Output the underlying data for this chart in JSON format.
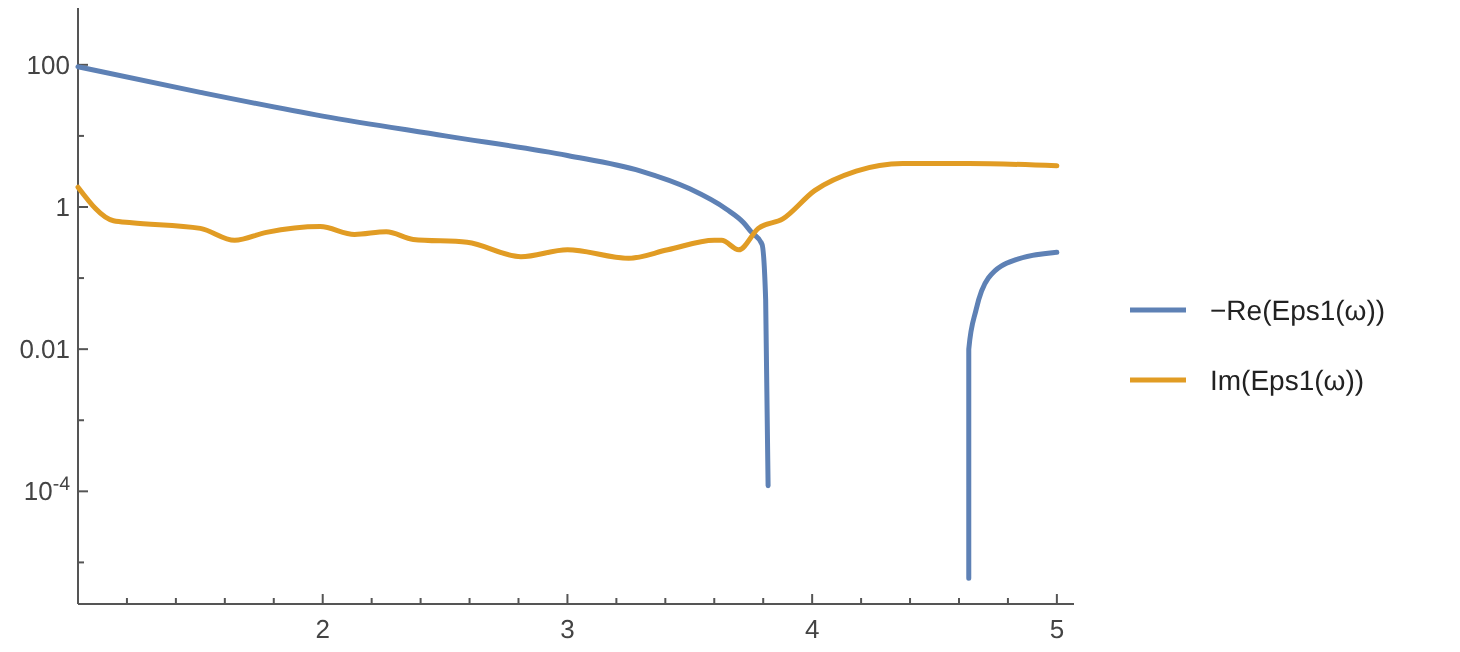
{
  "chart_data": {
    "type": "line",
    "log": "y",
    "legend": "right",
    "grid": false,
    "marker": "none",
    "line_style": "solid",
    "xlim": [
      1,
      5.07
    ],
    "ylim": [
      2.6e-06,
      630
    ],
    "xticks": [
      {
        "value": 1.2,
        "label": null
      },
      {
        "value": 1.4,
        "label": null
      },
      {
        "value": 1.6,
        "label": null
      },
      {
        "value": 1.8,
        "label": null
      },
      2,
      {
        "value": 2.2,
        "label": null
      },
      {
        "value": 2.4,
        "label": null
      },
      {
        "value": 2.6,
        "label": null
      },
      {
        "value": 2.8,
        "label": null
      },
      3,
      {
        "value": 3.2,
        "label": null
      },
      {
        "value": 3.4,
        "label": null
      },
      {
        "value": 3.6,
        "label": null
      },
      {
        "value": 3.8,
        "label": null
      },
      4,
      {
        "value": 4.2,
        "label": null
      },
      {
        "value": 4.4,
        "label": null
      },
      {
        "value": 4.6,
        "label": null
      },
      {
        "value": 4.8,
        "label": null
      },
      5
    ],
    "yticks": [
      {
        "value": 1e-05,
        "label": null
      },
      {
        "value": 0.0001,
        "label": "10$^{-4}$"
      },
      {
        "value": 0.001,
        "label": null
      },
      0.01,
      {
        "value": 0.1,
        "label": null
      },
      1,
      {
        "value": 10,
        "label": null
      },
      100
    ],
    "series": [
      {
        "name": "−Re(Eps1(ω))",
        "color": "#5e81b5",
        "x": [
          1,
          1.5,
          2,
          2.5,
          3,
          3.3,
          3.5,
          3.65,
          3.72,
          3.75,
          3.795,
          3.81,
          3.82,
          4.2,
          4.64,
          4.64,
          4.67,
          4.72,
          4.83,
          5
        ],
        "values": [
          94,
          41,
          19,
          10,
          5.3,
          3.2,
          1.8,
          0.93,
          0.6,
          0.45,
          0.3,
          0.05,
          0.00012,
          null,
          6e-06,
          0.01,
          0.036,
          0.1,
          0.18,
          0.23
        ]
      },
      {
        "name": "Im(Eps1(ω))",
        "color": "#e19c24",
        "x": [
          1,
          1.145,
          1.22,
          1.5,
          1.64,
          1.77,
          1.99,
          2.13,
          2.26,
          2.37,
          2.59,
          2.81,
          3,
          3.25,
          3.41,
          3.6,
          3.63,
          3.7,
          3.78,
          3.88,
          4.01,
          4.18,
          4.37,
          4.64,
          5
        ],
        "values": [
          1.9,
          0.64,
          0.6,
          0.5,
          0.34,
          0.44,
          0.53,
          0.41,
          0.45,
          0.35,
          0.32,
          0.2,
          0.25,
          0.19,
          0.25,
          0.34,
          0.34,
          0.25,
          0.5,
          0.68,
          1.7,
          3.2,
          4.1,
          4.1,
          3.8
        ]
      }
    ]
  }
}
